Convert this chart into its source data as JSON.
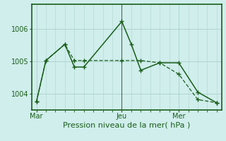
{
  "xlabel": "Pression niveau de la mer( hPa )",
  "background_color": "#d0eeec",
  "grid_color": "#b0d4d0",
  "line_color": "#1a5e1a",
  "ylim": [
    1003.5,
    1006.75
  ],
  "yticks": [
    1004,
    1005,
    1006
  ],
  "x_ticks_labels": [
    "Mar",
    "Jeu",
    "Mer"
  ],
  "x_ticks_pos": [
    0,
    9,
    15
  ],
  "vline_x": 9,
  "xlim": [
    -0.5,
    19.5
  ],
  "line1_x": [
    0,
    1,
    3,
    4,
    5,
    9,
    10,
    11,
    13,
    15,
    17,
    19
  ],
  "line1_y": [
    1003.75,
    1005.02,
    1005.52,
    1004.82,
    1004.82,
    1006.22,
    1005.52,
    1004.72,
    1004.95,
    1004.95,
    1004.05,
    1003.72
  ],
  "line2_x": [
    0,
    1,
    3,
    4,
    5,
    9,
    11,
    13,
    15,
    17,
    19
  ],
  "line2_y": [
    1003.75,
    1005.02,
    1005.52,
    1005.02,
    1005.02,
    1005.02,
    1005.02,
    1004.95,
    1004.6,
    1003.82,
    1003.72
  ]
}
